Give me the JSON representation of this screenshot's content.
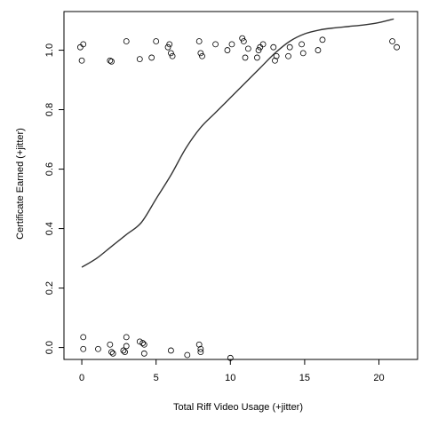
{
  "chart_data": {
    "type": "scatter",
    "xlabel": "Total Riff Video Usage (+jitter)",
    "ylabel": "Certificate Earned (+jitter)",
    "xlim": [
      -1.2,
      22.6
    ],
    "ylim": [
      -0.04,
      1.13
    ],
    "xticks": [
      0,
      5,
      10,
      15,
      20
    ],
    "yticks": [
      0.0,
      0.2,
      0.4,
      0.6,
      0.8,
      1.0
    ],
    "xtick_labels": [
      "0",
      "5",
      "10",
      "15",
      "20"
    ],
    "ytick_labels": [
      "0.0",
      "0.2",
      "0.4",
      "0.6",
      "0.8",
      "1.0"
    ],
    "series": [
      {
        "kind": "points",
        "marker": "open-circle",
        "x": [
          -0.1,
          0.1,
          0.0,
          1.9,
          2.0,
          3.0,
          3.9,
          5.0,
          4.7,
          5.8,
          5.9,
          6.0,
          6.1,
          7.9,
          8.0,
          8.1,
          9.0,
          9.8,
          10.1,
          10.8,
          10.9,
          11.0,
          11.2,
          11.8,
          11.9,
          12.0,
          12.2,
          12.9,
          13.0,
          13.1,
          13.9,
          14.0,
          14.8,
          14.9,
          15.9,
          16.2,
          20.9,
          21.2,
          0.1,
          0.1,
          1.1,
          1.9,
          2.0,
          2.1,
          2.8,
          2.9,
          3.0,
          3.0,
          3.9,
          4.1,
          4.2,
          4.2,
          6.0,
          7.1,
          7.9,
          8.0,
          8.0,
          10.0
        ],
        "y": [
          1.01,
          1.02,
          0.965,
          0.965,
          0.962,
          1.03,
          0.97,
          1.03,
          0.975,
          1.01,
          1.02,
          0.99,
          0.98,
          1.03,
          0.99,
          0.98,
          1.02,
          1.0,
          1.02,
          1.04,
          1.03,
          0.975,
          1.005,
          0.975,
          1.0,
          1.01,
          1.02,
          1.01,
          0.965,
          0.98,
          0.98,
          1.01,
          1.02,
          0.99,
          1.0,
          1.035,
          1.03,
          1.01,
          0.035,
          -0.005,
          -0.005,
          0.01,
          -0.015,
          -0.02,
          -0.01,
          -0.015,
          0.005,
          0.035,
          0.02,
          0.015,
          0.01,
          -0.02,
          -0.01,
          -0.025,
          0.01,
          -0.005,
          -0.015,
          -0.035
        ]
      },
      {
        "kind": "line",
        "x": [
          0,
          1,
          2,
          3,
          4,
          5,
          6,
          7,
          8,
          9,
          10,
          11,
          12,
          13,
          14,
          15,
          16,
          17,
          18,
          19,
          20,
          21
        ],
        "y": [
          0.27,
          0.3,
          0.34,
          0.38,
          0.42,
          0.5,
          0.58,
          0.67,
          0.74,
          0.79,
          0.84,
          0.89,
          0.94,
          0.99,
          1.03,
          1.055,
          1.068,
          1.075,
          1.08,
          1.085,
          1.093,
          1.105
        ]
      }
    ]
  }
}
